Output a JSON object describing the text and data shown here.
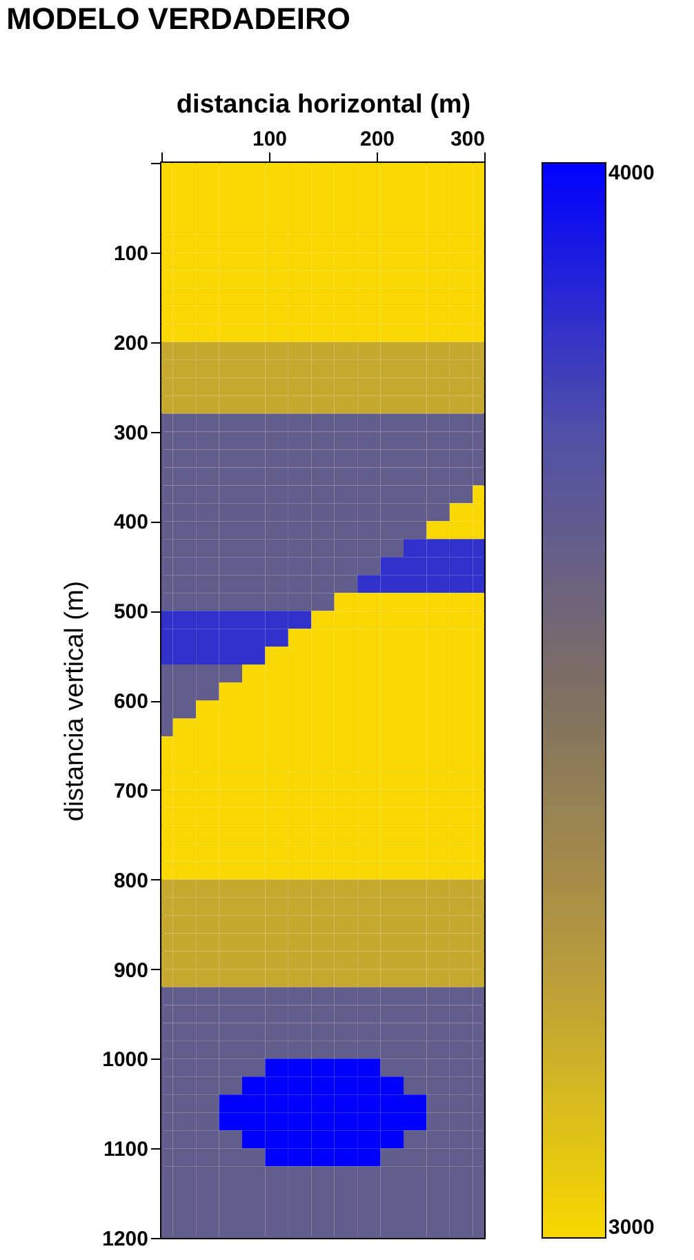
{
  "chart_data": {
    "type": "heatmap",
    "title": "MODELO VERDADEIRO",
    "xlabel": "distancia horizontal  (m)",
    "ylabel": "distancia vertical  (m)",
    "x": [
      0,
      21.4,
      42.9,
      64.3,
      85.7,
      107.1,
      128.6,
      150,
      171.4,
      192.9,
      214.3,
      235.7,
      257.1,
      278.6,
      300
    ],
    "y": [
      10,
      30,
      50,
      70,
      90,
      110,
      130,
      150,
      170,
      190,
      210,
      230,
      250,
      270,
      290,
      310,
      330,
      350,
      370,
      390,
      410,
      430,
      450,
      470,
      490,
      510,
      530,
      550,
      570,
      590,
      610,
      630,
      650,
      670,
      690,
      710,
      730,
      750,
      770,
      790,
      810,
      830,
      850,
      870,
      890,
      910,
      930,
      950,
      970,
      990,
      1010,
      1030,
      1050,
      1070,
      1090,
      1110,
      1130,
      1150,
      1170,
      1190
    ],
    "xlim": [
      0,
      300
    ],
    "xticks": [
      {
        "value": 0,
        "label": null
      },
      100,
      200,
      300
    ],
    "ylim": [
      1200,
      0
    ],
    "yticks": [
      {
        "value": 0,
        "label": null
      },
      100,
      200,
      300,
      400,
      500,
      600,
      700,
      800,
      900,
      1000,
      1100,
      1200
    ],
    "clim": [
      3000,
      4000
    ],
    "cticks": [
      3000,
      4000
    ],
    "colors": [
      "#f8d800",
      "#b89c3c",
      "#807060",
      "#5050a8",
      "#0000ff"
    ],
    "grid": false,
    "cells": [
      [
        3000,
        3000,
        3000,
        3000,
        3000,
        3000,
        3000,
        3000,
        3000,
        3000,
        3000,
        3000,
        3000,
        3000,
        3000
      ],
      [
        3000,
        3000,
        3000,
        3000,
        3000,
        3000,
        3000,
        3000,
        3000,
        3000,
        3000,
        3000,
        3000,
        3000,
        3000
      ],
      [
        3000,
        3000,
        3000,
        3000,
        3000,
        3000,
        3000,
        3000,
        3000,
        3000,
        3000,
        3000,
        3000,
        3000,
        3000
      ],
      [
        3000,
        3000,
        3000,
        3000,
        3000,
        3000,
        3000,
        3000,
        3000,
        3000,
        3000,
        3000,
        3000,
        3000,
        3000
      ],
      [
        3000,
        3000,
        3000,
        3000,
        3000,
        3000,
        3000,
        3000,
        3000,
        3000,
        3000,
        3000,
        3000,
        3000,
        3000
      ],
      [
        3000,
        3000,
        3000,
        3000,
        3000,
        3000,
        3000,
        3000,
        3000,
        3000,
        3000,
        3000,
        3000,
        3000,
        3000
      ],
      [
        3000,
        3000,
        3000,
        3000,
        3000,
        3000,
        3000,
        3000,
        3000,
        3000,
        3000,
        3000,
        3000,
        3000,
        3000
      ],
      [
        3000,
        3000,
        3000,
        3000,
        3000,
        3000,
        3000,
        3000,
        3000,
        3000,
        3000,
        3000,
        3000,
        3000,
        3000
      ],
      [
        3000,
        3000,
        3000,
        3000,
        3000,
        3000,
        3000,
        3000,
        3000,
        3000,
        3000,
        3000,
        3000,
        3000,
        3000
      ],
      [
        3000,
        3000,
        3000,
        3000,
        3000,
        3000,
        3000,
        3000,
        3000,
        3000,
        3000,
        3000,
        3000,
        3000,
        3000
      ],
      [
        3200,
        3200,
        3200,
        3200,
        3200,
        3200,
        3200,
        3200,
        3200,
        3200,
        3200,
        3200,
        3200,
        3200,
        3200
      ],
      [
        3200,
        3200,
        3200,
        3200,
        3200,
        3200,
        3200,
        3200,
        3200,
        3200,
        3200,
        3200,
        3200,
        3200,
        3200
      ],
      [
        3200,
        3200,
        3200,
        3200,
        3200,
        3200,
        3200,
        3200,
        3200,
        3200,
        3200,
        3200,
        3200,
        3200,
        3200
      ],
      [
        3200,
        3200,
        3200,
        3200,
        3200,
        3200,
        3200,
        3200,
        3200,
        3200,
        3200,
        3200,
        3200,
        3200,
        3200
      ],
      [
        3650,
        3650,
        3650,
        3650,
        3650,
        3650,
        3650,
        3650,
        3650,
        3650,
        3650,
        3650,
        3650,
        3650,
        3650
      ],
      [
        3650,
        3650,
        3650,
        3650,
        3650,
        3650,
        3650,
        3650,
        3650,
        3650,
        3650,
        3650,
        3650,
        3650,
        3650
      ],
      [
        3650,
        3650,
        3650,
        3650,
        3650,
        3650,
        3650,
        3650,
        3650,
        3650,
        3650,
        3650,
        3650,
        3650,
        3650
      ],
      [
        3650,
        3650,
        3650,
        3650,
        3650,
        3650,
        3650,
        3650,
        3650,
        3650,
        3650,
        3650,
        3650,
        3650,
        3650
      ],
      [
        3650,
        3650,
        3650,
        3650,
        3650,
        3650,
        3650,
        3650,
        3650,
        3650,
        3650,
        3650,
        3650,
        3650,
        3000
      ],
      [
        3650,
        3650,
        3650,
        3650,
        3650,
        3650,
        3650,
        3650,
        3650,
        3650,
        3650,
        3650,
        3650,
        3000,
        3000
      ],
      [
        3650,
        3650,
        3650,
        3650,
        3650,
        3650,
        3650,
        3650,
        3650,
        3650,
        3650,
        3650,
        3000,
        3000,
        3000
      ],
      [
        3650,
        3650,
        3650,
        3650,
        3650,
        3650,
        3650,
        3650,
        3650,
        3650,
        3650,
        3850,
        3850,
        3850,
        3850
      ],
      [
        3650,
        3650,
        3650,
        3650,
        3650,
        3650,
        3650,
        3650,
        3650,
        3650,
        3850,
        3850,
        3850,
        3850,
        3850
      ],
      [
        3650,
        3650,
        3650,
        3650,
        3650,
        3650,
        3650,
        3650,
        3650,
        3850,
        3850,
        3850,
        3850,
        3850,
        3850
      ],
      [
        3650,
        3650,
        3650,
        3650,
        3650,
        3650,
        3650,
        3650,
        3000,
        3000,
        3000,
        3000,
        3000,
        3000,
        3000
      ],
      [
        3850,
        3850,
        3850,
        3850,
        3850,
        3850,
        3850,
        3000,
        3000,
        3000,
        3000,
        3000,
        3000,
        3000,
        3000
      ],
      [
        3850,
        3850,
        3850,
        3850,
        3850,
        3850,
        3000,
        3000,
        3000,
        3000,
        3000,
        3000,
        3000,
        3000,
        3000
      ],
      [
        3850,
        3850,
        3850,
        3850,
        3850,
        3000,
        3000,
        3000,
        3000,
        3000,
        3000,
        3000,
        3000,
        3000,
        3000
      ],
      [
        3650,
        3650,
        3650,
        3650,
        3000,
        3000,
        3000,
        3000,
        3000,
        3000,
        3000,
        3000,
        3000,
        3000,
        3000
      ],
      [
        3650,
        3650,
        3650,
        3000,
        3000,
        3000,
        3000,
        3000,
        3000,
        3000,
        3000,
        3000,
        3000,
        3000,
        3000
      ],
      [
        3650,
        3650,
        3000,
        3000,
        3000,
        3000,
        3000,
        3000,
        3000,
        3000,
        3000,
        3000,
        3000,
        3000,
        3000
      ],
      [
        3650,
        3000,
        3000,
        3000,
        3000,
        3000,
        3000,
        3000,
        3000,
        3000,
        3000,
        3000,
        3000,
        3000,
        3000
      ],
      [
        3000,
        3000,
        3000,
        3000,
        3000,
        3000,
        3000,
        3000,
        3000,
        3000,
        3000,
        3000,
        3000,
        3000,
        3000
      ],
      [
        3000,
        3000,
        3000,
        3000,
        3000,
        3000,
        3000,
        3000,
        3000,
        3000,
        3000,
        3000,
        3000,
        3000,
        3000
      ],
      [
        3000,
        3000,
        3000,
        3000,
        3000,
        3000,
        3000,
        3000,
        3000,
        3000,
        3000,
        3000,
        3000,
        3000,
        3000
      ],
      [
        3000,
        3000,
        3000,
        3000,
        3000,
        3000,
        3000,
        3000,
        3000,
        3000,
        3000,
        3000,
        3000,
        3000,
        3000
      ],
      [
        3000,
        3000,
        3000,
        3000,
        3000,
        3000,
        3000,
        3000,
        3000,
        3000,
        3000,
        3000,
        3000,
        3000,
        3000
      ],
      [
        3000,
        3000,
        3000,
        3000,
        3000,
        3000,
        3000,
        3000,
        3000,
        3000,
        3000,
        3000,
        3000,
        3000,
        3000
      ],
      [
        3000,
        3000,
        3000,
        3000,
        3000,
        3000,
        3000,
        3000,
        3000,
        3000,
        3000,
        3000,
        3000,
        3000,
        3000
      ],
      [
        3000,
        3000,
        3000,
        3000,
        3000,
        3000,
        3000,
        3000,
        3000,
        3000,
        3000,
        3000,
        3000,
        3000,
        3000
      ],
      [
        3200,
        3200,
        3200,
        3200,
        3200,
        3200,
        3200,
        3200,
        3200,
        3200,
        3200,
        3200,
        3200,
        3200,
        3200
      ],
      [
        3200,
        3200,
        3200,
        3200,
        3200,
        3200,
        3200,
        3200,
        3200,
        3200,
        3200,
        3200,
        3200,
        3200,
        3200
      ],
      [
        3200,
        3200,
        3200,
        3200,
        3200,
        3200,
        3200,
        3200,
        3200,
        3200,
        3200,
        3200,
        3200,
        3200,
        3200
      ],
      [
        3200,
        3200,
        3200,
        3200,
        3200,
        3200,
        3200,
        3200,
        3200,
        3200,
        3200,
        3200,
        3200,
        3200,
        3200
      ],
      [
        3200,
        3200,
        3200,
        3200,
        3200,
        3200,
        3200,
        3200,
        3200,
        3200,
        3200,
        3200,
        3200,
        3200,
        3200
      ],
      [
        3200,
        3200,
        3200,
        3200,
        3200,
        3200,
        3200,
        3200,
        3200,
        3200,
        3200,
        3200,
        3200,
        3200,
        3200
      ],
      [
        3650,
        3650,
        3650,
        3650,
        3650,
        3650,
        3650,
        3650,
        3650,
        3650,
        3650,
        3650,
        3650,
        3650,
        3650
      ],
      [
        3650,
        3650,
        3650,
        3650,
        3650,
        3650,
        3650,
        3650,
        3650,
        3650,
        3650,
        3650,
        3650,
        3650,
        3650
      ],
      [
        3650,
        3650,
        3650,
        3650,
        3650,
        3650,
        3650,
        3650,
        3650,
        3650,
        3650,
        3650,
        3650,
        3650,
        3650
      ],
      [
        3650,
        3650,
        3650,
        3650,
        3650,
        3650,
        3650,
        3650,
        3650,
        3650,
        3650,
        3650,
        3650,
        3650,
        3650
      ],
      [
        3650,
        3650,
        3650,
        3650,
        3650,
        4000,
        4000,
        4000,
        4000,
        4000,
        3650,
        3650,
        3650,
        3650,
        3650
      ],
      [
        3650,
        3650,
        3650,
        3650,
        4000,
        4000,
        4000,
        4000,
        4000,
        4000,
        4000,
        3650,
        3650,
        3650,
        3650
      ],
      [
        3650,
        3650,
        3650,
        4000,
        4000,
        4000,
        4000,
        4000,
        4000,
        4000,
        4000,
        4000,
        3650,
        3650,
        3650
      ],
      [
        3650,
        3650,
        3650,
        4000,
        4000,
        4000,
        4000,
        4000,
        4000,
        4000,
        4000,
        4000,
        3650,
        3650,
        3650
      ],
      [
        3650,
        3650,
        3650,
        3650,
        4000,
        4000,
        4000,
        4000,
        4000,
        4000,
        4000,
        3650,
        3650,
        3650,
        3650
      ],
      [
        3650,
        3650,
        3650,
        3650,
        3650,
        4000,
        4000,
        4000,
        4000,
        4000,
        3650,
        3650,
        3650,
        3650,
        3650
      ],
      [
        3650,
        3650,
        3650,
        3650,
        3650,
        3650,
        3650,
        3650,
        3650,
        3650,
        3650,
        3650,
        3650,
        3650,
        3650
      ],
      [
        3650,
        3650,
        3650,
        3650,
        3650,
        3650,
        3650,
        3650,
        3650,
        3650,
        3650,
        3650,
        3650,
        3650,
        3650
      ],
      [
        3650,
        3650,
        3650,
        3650,
        3650,
        3650,
        3650,
        3650,
        3650,
        3650,
        3650,
        3650,
        3650,
        3650,
        3650
      ],
      [
        3650,
        3650,
        3650,
        3650,
        3650,
        3650,
        3650,
        3650,
        3650,
        3650,
        3650,
        3650,
        3650,
        3650,
        3650
      ]
    ]
  }
}
